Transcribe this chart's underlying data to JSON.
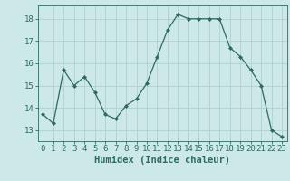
{
  "xlabel": "Humidex (Indice chaleur)",
  "x": [
    0,
    1,
    2,
    3,
    4,
    5,
    6,
    7,
    8,
    9,
    10,
    11,
    12,
    13,
    14,
    15,
    16,
    17,
    18,
    19,
    20,
    21,
    22,
    23
  ],
  "y": [
    13.7,
    13.3,
    15.7,
    15.0,
    15.4,
    14.7,
    13.7,
    13.5,
    14.1,
    14.4,
    15.1,
    16.3,
    17.5,
    18.2,
    18.0,
    18.0,
    18.0,
    18.0,
    16.7,
    16.3,
    15.7,
    15.0,
    13.0,
    12.7
  ],
  "line_color": "#2e6b5e",
  "marker": "D",
  "marker_size": 2,
  "bg_color": "#cce8e8",
  "grid_color": "#b0d0d0",
  "axis_color": "#2e6b5e",
  "tick_color": "#2e6b5e",
  "ylim": [
    12.5,
    18.6
  ],
  "yticks": [
    13,
    14,
    15,
    16,
    17,
    18
  ],
  "xlim": [
    -0.5,
    23.5
  ],
  "xlabel_color": "#2e6b5e",
  "font_size": 6.5
}
